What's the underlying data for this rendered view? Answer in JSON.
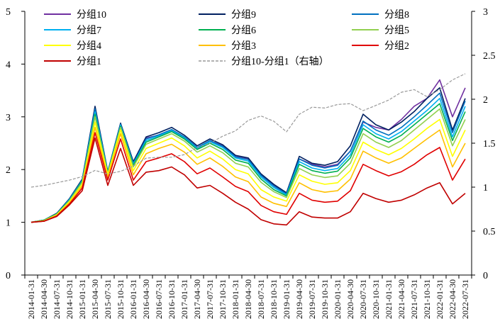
{
  "chart_data": {
    "type": "line",
    "title": "",
    "xlabel": "",
    "ylabel": "",
    "y_left_lim": [
      0,
      5
    ],
    "y_left_ticks": [
      0,
      1,
      2,
      3,
      4,
      5
    ],
    "y_right_lim": [
      0,
      3
    ],
    "y_right_ticks": [
      "0",
      "0.5",
      "1",
      "1.5",
      "2",
      "2.5",
      "3"
    ],
    "grid": false,
    "legend_position": "top",
    "x_ticks": [
      "2014-01-31",
      "2014-04-30",
      "2014-07-31",
      "2014-10-31",
      "2015-01-31",
      "2015-04-30",
      "2015-07-31",
      "2015-10-31",
      "2016-01-31",
      "2016-04-30",
      "2016-07-31",
      "2016-10-31",
      "2017-01-31",
      "2017-04-30",
      "2017-07-31",
      "2017-10-31",
      "2018-01-31",
      "2018-04-30",
      "2018-07-31",
      "2018-10-31",
      "2019-01-31",
      "2019-04-30",
      "2019-07-31",
      "2019-10-31",
      "2020-01-31",
      "2020-04-30",
      "2020-07-31",
      "2020-10-31",
      "2021-01-31",
      "2021-04-30",
      "2021-07-31",
      "2021-10-31",
      "2022-01-31",
      "2022-04-30",
      "2022-07-31"
    ],
    "series": [
      {
        "name": "分组10",
        "color": "#7030a0",
        "axis": "left",
        "style": "solid",
        "values": [
          1.0,
          1.04,
          1.17,
          1.43,
          1.8,
          3.1,
          1.95,
          2.85,
          2.1,
          2.6,
          2.65,
          2.75,
          2.6,
          2.4,
          2.55,
          2.45,
          2.25,
          2.2,
          1.9,
          1.7,
          1.55,
          2.2,
          2.1,
          2.05,
          2.1,
          2.35,
          2.9,
          2.8,
          2.75,
          2.95,
          3.2,
          3.35,
          3.7,
          3.0,
          3.55
        ]
      },
      {
        "name": "分组9",
        "color": "#002060",
        "axis": "left",
        "style": "solid",
        "values": [
          1.0,
          1.04,
          1.17,
          1.45,
          1.82,
          3.2,
          1.96,
          2.88,
          2.15,
          2.62,
          2.7,
          2.8,
          2.65,
          2.45,
          2.58,
          2.47,
          2.27,
          2.22,
          1.92,
          1.72,
          1.56,
          2.25,
          2.12,
          2.08,
          2.15,
          2.45,
          3.05,
          2.85,
          2.75,
          2.9,
          3.1,
          3.35,
          3.55,
          2.75,
          3.35
        ]
      },
      {
        "name": "分组8",
        "color": "#0070c0",
        "axis": "left",
        "style": "solid",
        "values": [
          1.0,
          1.04,
          1.16,
          1.44,
          1.8,
          3.15,
          1.95,
          2.86,
          2.12,
          2.58,
          2.66,
          2.76,
          2.62,
          2.42,
          2.55,
          2.44,
          2.24,
          2.19,
          1.89,
          1.69,
          1.54,
          2.2,
          2.08,
          2.03,
          2.08,
          2.35,
          2.92,
          2.75,
          2.65,
          2.8,
          3.0,
          3.22,
          3.45,
          2.7,
          3.3
        ]
      },
      {
        "name": "分组7",
        "color": "#00b0f0",
        "axis": "left",
        "style": "solid",
        "values": [
          1.0,
          1.04,
          1.16,
          1.43,
          1.79,
          3.1,
          1.94,
          2.84,
          2.1,
          2.55,
          2.64,
          2.74,
          2.6,
          2.4,
          2.53,
          2.42,
          2.22,
          2.16,
          1.86,
          1.66,
          1.52,
          2.15,
          2.03,
          1.98,
          2.02,
          2.28,
          2.85,
          2.68,
          2.58,
          2.72,
          2.92,
          3.12,
          3.35,
          2.62,
          3.2
        ]
      },
      {
        "name": "分组6",
        "color": "#00b050",
        "axis": "left",
        "style": "solid",
        "values": [
          1.0,
          1.04,
          1.16,
          1.42,
          1.78,
          3.05,
          1.93,
          2.82,
          2.08,
          2.52,
          2.62,
          2.72,
          2.58,
          2.38,
          2.5,
          2.38,
          2.18,
          2.12,
          1.82,
          1.62,
          1.5,
          2.1,
          1.98,
          1.93,
          1.97,
          2.22,
          2.78,
          2.62,
          2.52,
          2.65,
          2.85,
          3.05,
          3.25,
          2.55,
          3.1
        ]
      },
      {
        "name": "分组5",
        "color": "#92d050",
        "axis": "left",
        "style": "solid",
        "values": [
          1.0,
          1.03,
          1.15,
          1.41,
          1.76,
          3.0,
          1.92,
          2.8,
          2.05,
          2.48,
          2.58,
          2.68,
          2.54,
          2.33,
          2.45,
          2.32,
          2.12,
          2.05,
          1.76,
          1.58,
          1.47,
          2.02,
          1.9,
          1.85,
          1.88,
          2.12,
          2.68,
          2.52,
          2.42,
          2.55,
          2.75,
          2.95,
          3.15,
          2.45,
          2.95
        ]
      },
      {
        "name": "分组4",
        "color": "#ffff00",
        "axis": "left",
        "style": "solid",
        "values": [
          1.0,
          1.03,
          1.14,
          1.39,
          1.72,
          2.9,
          1.9,
          2.75,
          1.98,
          2.4,
          2.5,
          2.6,
          2.45,
          2.22,
          2.35,
          2.2,
          2.0,
          1.92,
          1.62,
          1.48,
          1.4,
          1.9,
          1.78,
          1.72,
          1.75,
          1.98,
          2.52,
          2.38,
          2.28,
          2.4,
          2.58,
          2.78,
          2.95,
          2.25,
          2.75
        ]
      },
      {
        "name": "分组3",
        "color": "#ffc000",
        "axis": "left",
        "style": "solid",
        "values": [
          1.0,
          1.03,
          1.13,
          1.37,
          1.69,
          2.8,
          1.85,
          2.68,
          1.9,
          2.3,
          2.4,
          2.48,
          2.33,
          2.1,
          2.22,
          2.06,
          1.86,
          1.77,
          1.48,
          1.36,
          1.3,
          1.75,
          1.62,
          1.57,
          1.6,
          1.82,
          2.35,
          2.22,
          2.12,
          2.22,
          2.4,
          2.58,
          2.75,
          2.05,
          2.5
        ]
      },
      {
        "name": "分组2",
        "color": "#e00000",
        "axis": "left",
        "style": "solid",
        "values": [
          1.0,
          1.02,
          1.12,
          1.35,
          1.65,
          2.7,
          1.8,
          2.58,
          1.8,
          2.15,
          2.22,
          2.3,
          2.15,
          1.92,
          2.03,
          1.86,
          1.68,
          1.58,
          1.32,
          1.2,
          1.15,
          1.55,
          1.42,
          1.38,
          1.4,
          1.6,
          2.1,
          1.98,
          1.88,
          1.96,
          2.1,
          2.28,
          2.42,
          1.8,
          2.2
        ]
      },
      {
        "name": "分组1",
        "color": "#c00000",
        "axis": "left",
        "style": "solid",
        "values": [
          1.0,
          1.02,
          1.11,
          1.33,
          1.6,
          2.6,
          1.7,
          2.4,
          1.7,
          1.95,
          1.98,
          2.05,
          1.9,
          1.65,
          1.7,
          1.55,
          1.38,
          1.25,
          1.05,
          0.97,
          0.95,
          1.2,
          1.1,
          1.08,
          1.08,
          1.2,
          1.55,
          1.45,
          1.38,
          1.42,
          1.52,
          1.65,
          1.75,
          1.35,
          1.55
        ]
      },
      {
        "name": "分组10-分组1（右轴）",
        "color": "#999999",
        "axis": "right",
        "style": "dashed",
        "values": [
          1.0,
          1.02,
          1.05,
          1.08,
          1.12,
          1.19,
          1.15,
          1.18,
          1.24,
          1.33,
          1.34,
          1.34,
          1.37,
          1.45,
          1.5,
          1.58,
          1.64,
          1.76,
          1.81,
          1.75,
          1.63,
          1.83,
          1.91,
          1.9,
          1.94,
          1.95,
          1.87,
          1.93,
          1.99,
          2.08,
          2.11,
          2.03,
          2.11,
          2.22,
          2.29
        ]
      }
    ]
  }
}
